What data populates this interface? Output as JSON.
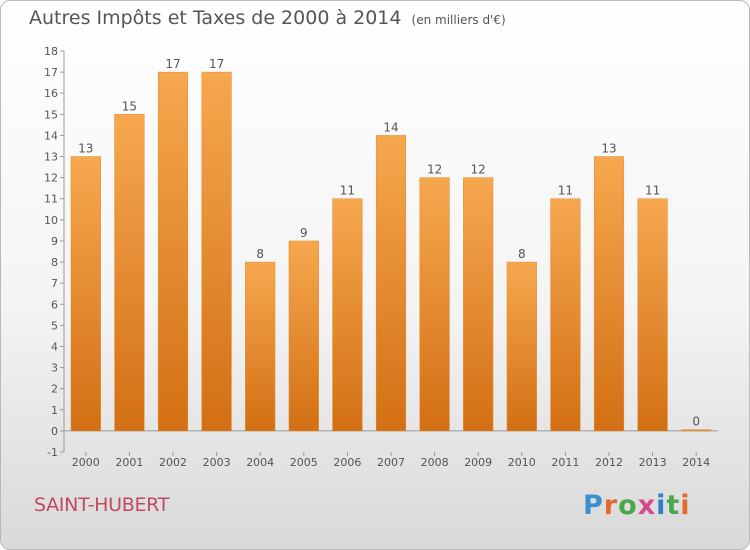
{
  "title": "Autres Impôts et Taxes de 2000 à 2014",
  "subtitle": "(en milliers d'€)",
  "commune": "SAINT-HUBERT",
  "brand": {
    "p": "P",
    "r": "r",
    "o": "o",
    "x": "x",
    "i": "i",
    "t": "t",
    "i2": "i"
  },
  "colors": {
    "bar": "#f39a3c",
    "bar_dark": "#d97417",
    "axis": "#999999",
    "text": "#555555",
    "city": "#c04a62"
  },
  "chart_data": {
    "type": "bar",
    "categories": [
      "2000",
      "2001",
      "2002",
      "2003",
      "2004",
      "2005",
      "2006",
      "2007",
      "2008",
      "2009",
      "2010",
      "2011",
      "2012",
      "2013",
      "2014"
    ],
    "values": [
      13,
      15,
      17,
      17,
      8,
      9,
      11,
      14,
      12,
      12,
      8,
      11,
      13,
      11,
      0
    ],
    "ylim": [
      -1,
      18
    ],
    "yticks": [
      -1,
      0,
      1,
      2,
      3,
      4,
      5,
      6,
      7,
      8,
      9,
      10,
      11,
      12,
      13,
      14,
      15,
      16,
      17,
      18
    ],
    "grid": false,
    "data_labels": true
  }
}
